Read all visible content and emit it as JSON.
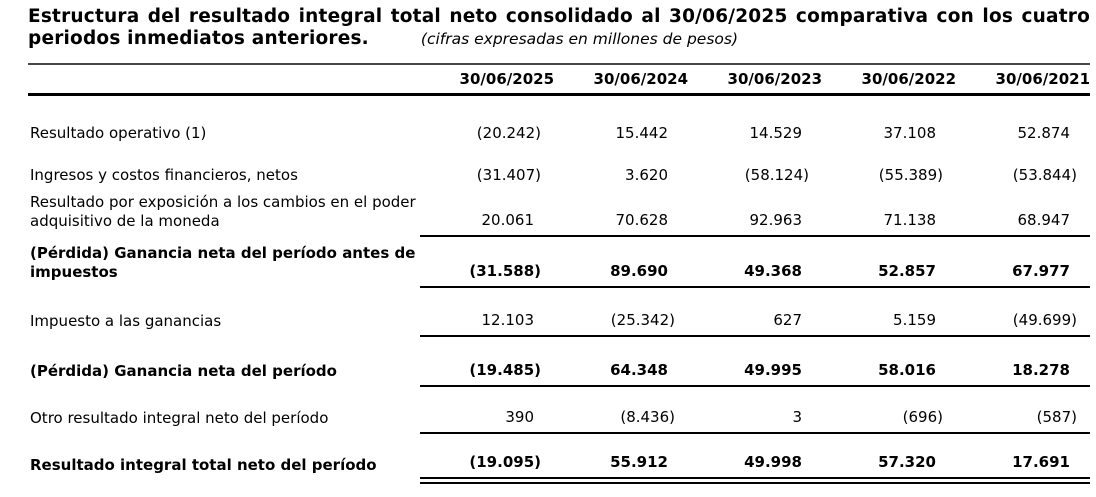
{
  "title": {
    "line1": "Estructura del resultado integral total neto consolidado al 30/06/2025 comparativa con los cuatro",
    "line2": "periodos inmediatos anteriores.",
    "subtitle": "(cifras expresadas en millones de pesos)"
  },
  "table": {
    "columns": [
      "30/06/2025",
      "30/06/2024",
      "30/06/2023",
      "30/06/2022",
      "30/06/2021"
    ],
    "rows": [
      {
        "label": "Resultado operativo (1)",
        "bold": false,
        "underline": "none",
        "values": [
          "(20.242)",
          "15.442",
          "14.529",
          "37.108",
          "52.874"
        ]
      },
      {
        "label": "Ingresos y costos financieros, netos",
        "bold": false,
        "underline": "none",
        "values": [
          "(31.407)",
          "3.620",
          "(58.124)",
          "(55.389)",
          "(53.844)"
        ]
      },
      {
        "label": "Resultado por exposición a los cambios en el poder\nadquisitivo de la moneda",
        "bold": false,
        "underline": "single",
        "values": [
          "20.061",
          "70.628",
          "92.963",
          "71.138",
          "68.947"
        ]
      },
      {
        "label": "(Pérdida) Ganancia neta del período antes de\nimpuestos",
        "bold": true,
        "underline": "single",
        "values": [
          "(31.588)",
          "89.690",
          "49.368",
          "52.857",
          "67.977"
        ]
      },
      {
        "label": "Impuesto a las ganancias",
        "bold": false,
        "underline": "single",
        "values": [
          "12.103",
          "(25.342)",
          "627",
          "5.159",
          "(49.699)"
        ]
      },
      {
        "label": "(Pérdida) Ganancia neta del período",
        "bold": true,
        "underline": "single",
        "values": [
          "(19.485)",
          "64.348",
          "49.995",
          "58.016",
          "18.278"
        ]
      },
      {
        "label": "Otro resultado integral neto del período",
        "bold": false,
        "underline": "single",
        "values": [
          "390",
          "(8.436)",
          "3",
          "(696)",
          "(587)"
        ]
      },
      {
        "label": "Resultado integral total neto del período",
        "bold": true,
        "underline": "double",
        "values": [
          "(19.095)",
          "55.912",
          "49.998",
          "57.320",
          "17.691"
        ]
      }
    ]
  }
}
